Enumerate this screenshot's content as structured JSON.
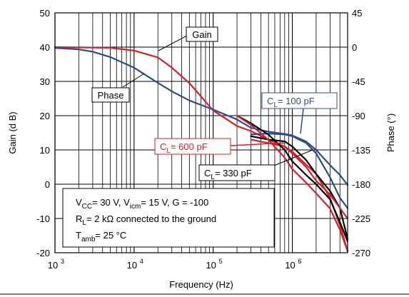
{
  "chart_data": {
    "type": "line",
    "title": "",
    "xlabel": "Frequency (Hz)",
    "ylabel": "Gain (d B)",
    "y2label": "Phase (°)",
    "xscale": "log",
    "xlim": [
      1000,
      5000000
    ],
    "ylim": [
      -20,
      50
    ],
    "y2lim": [
      -270,
      45
    ],
    "grid": true,
    "x_ticks": [
      {
        "base": "10",
        "exp": "3",
        "value": 1000
      },
      {
        "base": "10",
        "exp": "4",
        "value": 10000
      },
      {
        "base": "10",
        "exp": "5",
        "value": 100000
      },
      {
        "base": "10",
        "exp": "6",
        "value": 1000000
      }
    ],
    "y_ticks": [
      "50",
      "40",
      "30",
      "20",
      "10",
      "0",
      "-10",
      "-20"
    ],
    "y_tick_values": [
      50,
      40,
      30,
      20,
      10,
      0,
      -10,
      -20
    ],
    "y2_ticks": [
      "45",
      "0",
      "-45",
      "-90",
      "-135",
      "-180",
      "-225",
      "-270"
    ],
    "y2_tick_values": [
      45,
      0,
      -45,
      -90,
      -135,
      -180,
      -225,
      -270
    ],
    "series": [
      {
        "name": "Gain",
        "axis": "gain",
        "color": "#d62027",
        "points": [
          [
            1000,
            40
          ],
          [
            5000,
            39.8
          ],
          [
            10000,
            39
          ],
          [
            20000,
            37
          ],
          [
            30000,
            34
          ],
          [
            50000,
            29.5
          ],
          [
            100000,
            21.5
          ],
          [
            200000,
            17
          ],
          [
            300000,
            15.5
          ],
          [
            500000,
            13
          ],
          [
            800000,
            11
          ],
          [
            1000000,
            9.5
          ],
          [
            2000000,
            3
          ],
          [
            3000000,
            -4
          ],
          [
            4000000,
            -12
          ],
          [
            5000000,
            -19.5
          ]
        ]
      },
      {
        "name": "Phase",
        "axis": "phase",
        "color": "#2a4d8f",
        "points": [
          [
            1000,
            -1
          ],
          [
            2000,
            -3
          ],
          [
            3000,
            -6
          ],
          [
            5000,
            -13
          ],
          [
            10000,
            -27
          ],
          [
            20000,
            -47
          ],
          [
            30000,
            -58
          ],
          [
            50000,
            -70
          ],
          [
            100000,
            -82
          ],
          [
            200000,
            -95
          ],
          [
            300000,
            -106
          ],
          [
            500000,
            -111
          ],
          [
            800000,
            -114
          ],
          [
            1000000,
            -116
          ],
          [
            1500000,
            -124
          ],
          [
            2000000,
            -135
          ],
          [
            3000000,
            -155
          ],
          [
            4000000,
            -168
          ],
          [
            5000000,
            -181
          ]
        ]
      },
      {
        "name": "CL = 100 pF",
        "axis": "gain",
        "color": "#2a4d8f",
        "points": [
          [
            300000,
            14.5
          ],
          [
            500000,
            14.8
          ],
          [
            800000,
            14.5
          ],
          [
            1000000,
            14
          ],
          [
            1500000,
            12
          ],
          [
            2000000,
            9
          ],
          [
            3000000,
            2
          ],
          [
            4000000,
            -4
          ],
          [
            5000000,
            -7
          ]
        ]
      },
      {
        "name": "CL = 330 pF",
        "axis": "gain",
        "color": "#000000",
        "points": [
          [
            300000,
            14
          ],
          [
            500000,
            13
          ],
          [
            800000,
            12.5
          ],
          [
            1000000,
            11
          ],
          [
            1500000,
            7
          ],
          [
            2000000,
            3
          ],
          [
            3000000,
            -2
          ],
          [
            4000000,
            -7
          ],
          [
            5000000,
            -16
          ]
        ]
      },
      {
        "name": "CL = 600 pF",
        "axis": "gain",
        "color": "#d62027",
        "points": [
          [
            300000,
            13
          ],
          [
            500000,
            12
          ],
          [
            800000,
            11
          ],
          [
            1000000,
            9
          ],
          [
            1500000,
            5
          ],
          [
            2000000,
            1
          ],
          [
            3000000,
            -3
          ],
          [
            4000000,
            -7
          ],
          [
            5000000,
            -10
          ]
        ]
      },
      {
        "name": "",
        "axis": "phase",
        "color": "#000000",
        "points": [
          [
            200000,
            -90
          ],
          [
            300000,
            -100
          ],
          [
            500000,
            -115
          ],
          [
            800000,
            -135
          ],
          [
            1000000,
            -150
          ],
          [
            1500000,
            -168
          ],
          [
            2000000,
            -180
          ],
          [
            3000000,
            -200
          ],
          [
            4000000,
            -230
          ],
          [
            5000000,
            -255
          ]
        ]
      },
      {
        "name": "",
        "axis": "phase",
        "color": "#d62027",
        "points": [
          [
            200000,
            -90
          ],
          [
            300000,
            -102
          ],
          [
            500000,
            -122
          ],
          [
            800000,
            -145
          ],
          [
            1000000,
            -160
          ],
          [
            1500000,
            -178
          ],
          [
            2000000,
            -192
          ],
          [
            3000000,
            -212
          ],
          [
            4000000,
            -240
          ],
          [
            5000000,
            -268
          ]
        ]
      }
    ],
    "annotations": {
      "gain": "Gain",
      "phase": "Phase",
      "cl100": {
        "pre": "C",
        "sub": "L",
        "post": "= 100 pF"
      },
      "cl600": {
        "pre": "C",
        "sub": "L",
        "post": "= 600 pF"
      },
      "cl330": {
        "pre": "C",
        "sub": "L",
        "post": "= 330 pF"
      }
    },
    "conditions": {
      "line1": {
        "a": "V",
        "a_sub": "CC",
        "b": "= 30 V, V",
        "b_sub": "icm",
        "c": "= 15 V, G = -100"
      },
      "line2": {
        "a": "R",
        "a_sub": "L",
        "b": "= 2 kΩ connected to the ground"
      },
      "line3": {
        "a": "T",
        "a_sub": "amb",
        "b": "= 25 °C"
      }
    }
  }
}
